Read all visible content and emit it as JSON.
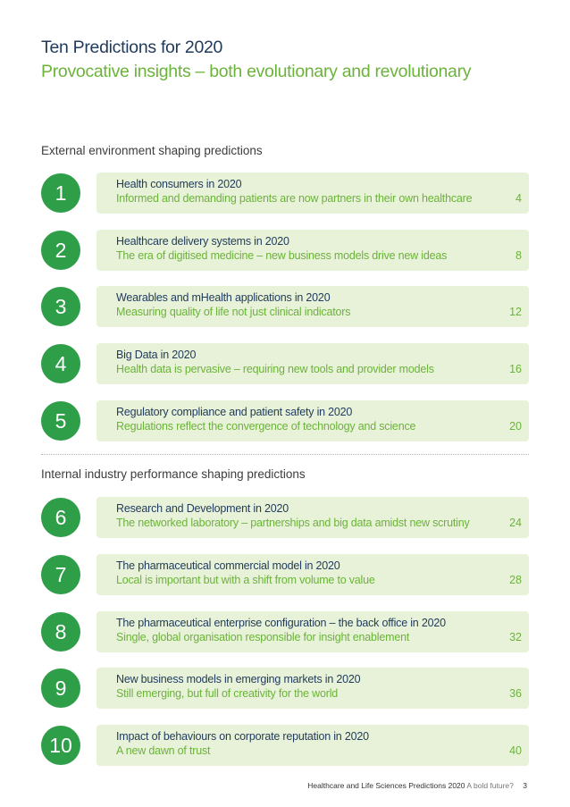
{
  "title": "Ten Predictions for 2020",
  "subtitle": "Provocative insights – both evolutionary and revolutionary",
  "sections": [
    {
      "heading": "External environment shaping predictions",
      "items": [
        {
          "number": "1",
          "title": "Health consumers in 2020",
          "description": "Informed and demanding patients are now partners in their own healthcare",
          "page": "4"
        },
        {
          "number": "2",
          "title": "Healthcare delivery systems in 2020",
          "description": "The era of digitised medicine – new business models drive new ideas",
          "page": "8"
        },
        {
          "number": "3",
          "title": "Wearables and mHealth applications in 2020",
          "description": "Measuring quality of life not just clinical indicators",
          "page": "12"
        },
        {
          "number": "4",
          "title": "Big Data in 2020",
          "description": "Health data is pervasive – requiring new tools and provider models",
          "page": "16"
        },
        {
          "number": "5",
          "title": "Regulatory compliance and patient safety in 2020",
          "description": "Regulations reflect the convergence of technology and science",
          "page": "20"
        }
      ]
    },
    {
      "heading": "Internal industry performance shaping predictions",
      "items": [
        {
          "number": "6",
          "title": "Research and Development in 2020",
          "description": "The networked laboratory – partnerships and big data amidst new scrutiny",
          "page": "24"
        },
        {
          "number": "7",
          "title": "The pharmaceutical commercial model in 2020",
          "description": "Local is important but with a shift from volume to value",
          "page": "28"
        },
        {
          "number": "8",
          "title": "The pharmaceutical enterprise configuration – the back office in 2020",
          "description": "Single, global organisation responsible for insight enablement",
          "page": "32"
        },
        {
          "number": "9",
          "title": "New business models in emerging markets in 2020",
          "description": "Still emerging, but full of creativity for the world",
          "page": "36"
        },
        {
          "number": "10",
          "title": "Impact of behaviours on corporate reputation in 2020",
          "description": "A new dawn of trust",
          "page": "40"
        }
      ]
    }
  ],
  "footer": {
    "publication": "Healthcare and Life Sciences Predictions 2020",
    "tagline": "A bold future?",
    "page_number": "3"
  }
}
